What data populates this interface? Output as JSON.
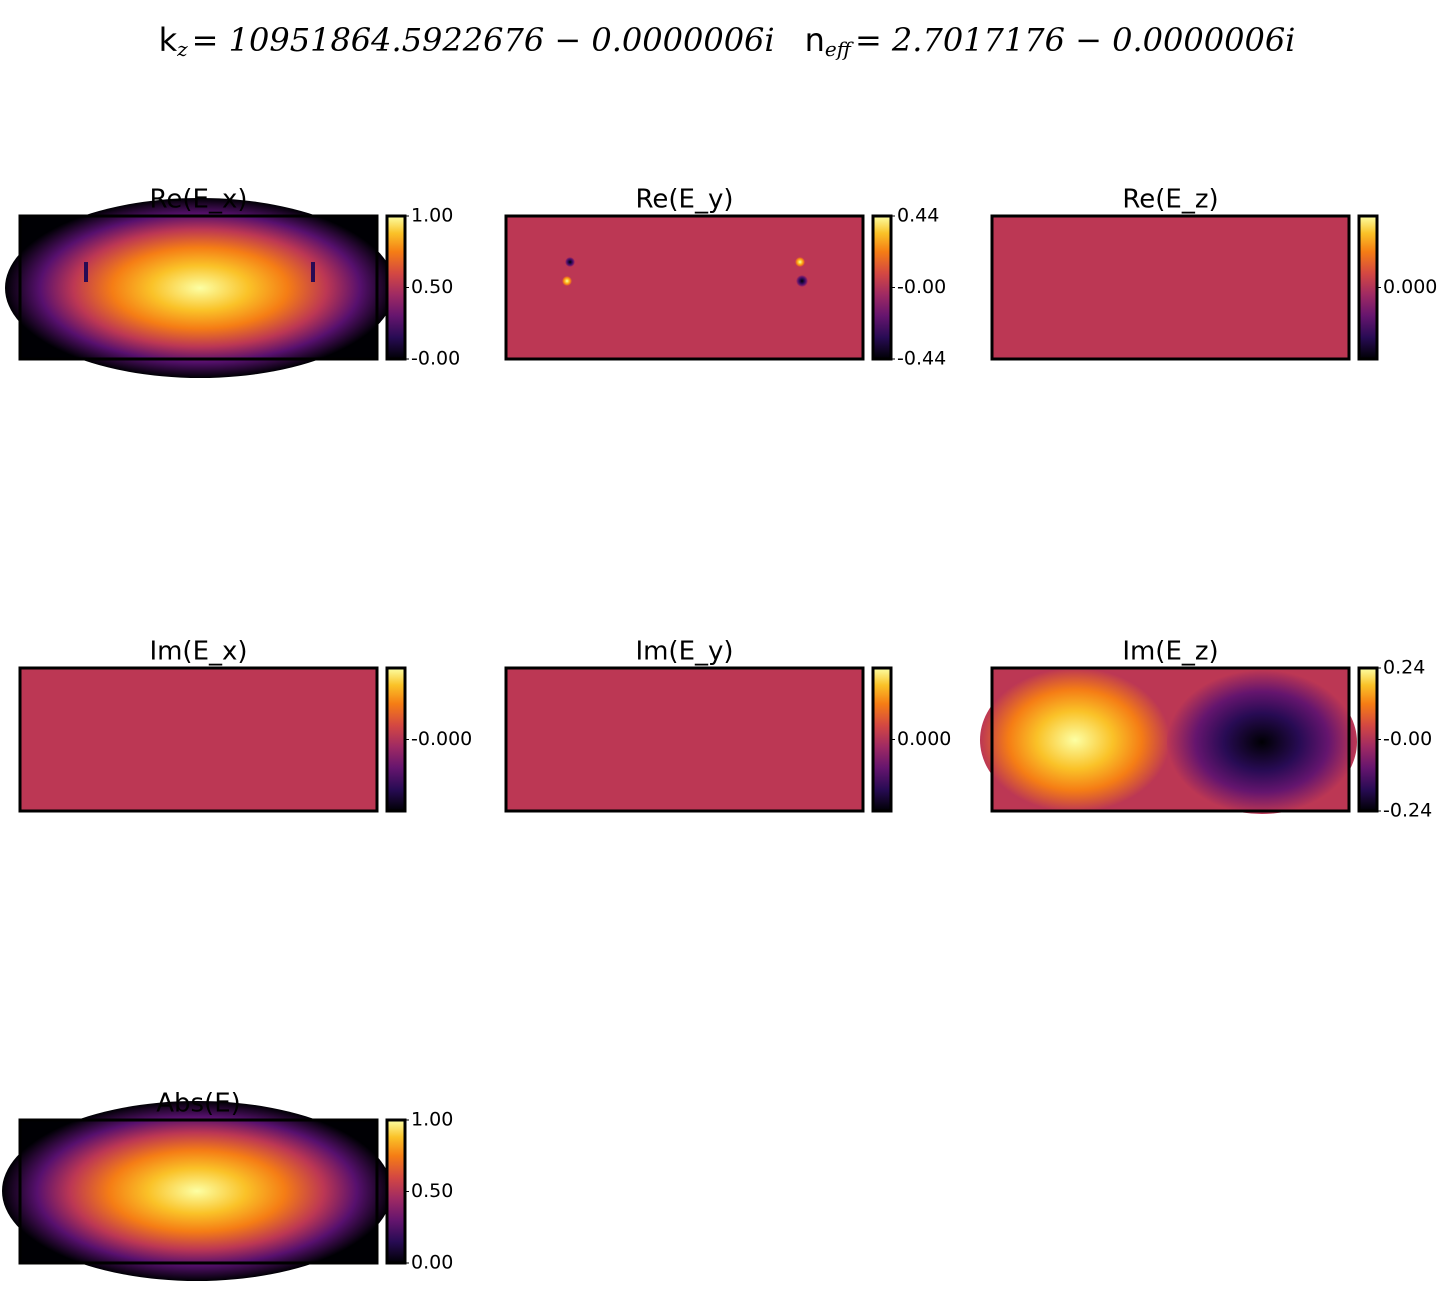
{
  "figure_title": {
    "k": "k",
    "k_sub": "z",
    "k_value": "= 10951864.5922676 − 0.0000006i",
    "n": "n",
    "n_sub": "eff",
    "n_value": "= 2.7017176 − 0.0000006i"
  },
  "chart_data": [
    {
      "type": "heatmap",
      "title": "Re(E_x)",
      "colormap": "inferno",
      "clim": [
        0,
        1
      ],
      "cticks": [
        {
          "value": 1,
          "label": "1.00"
        },
        {
          "value": 0.5,
          "label": "0.50"
        },
        {
          "value": 0,
          "label": "-0.00"
        }
      ]
    },
    {
      "type": "heatmap",
      "title": "Re(E_y)",
      "colormap": "inferno",
      "clim": [
        -0.44,
        0.44
      ],
      "cticks": [
        0.44,
        {
          "value": 0,
          "label": "-0.00"
        },
        -0.44
      ]
    },
    {
      "type": "heatmap",
      "title": "Re(E_z)",
      "colormap": "inferno",
      "clim": [
        -0.0001,
        0.0001
      ],
      "cticks": [
        {
          "value": 0,
          "label": "0.000"
        }
      ]
    },
    {
      "type": "heatmap",
      "title": "Im(E_x)",
      "colormap": "inferno",
      "clim": [
        -0.0001,
        0.0001
      ],
      "cticks": [
        {
          "value": 0,
          "label": "-0.000"
        }
      ]
    },
    {
      "type": "heatmap",
      "title": "Im(E_y)",
      "colormap": "inferno",
      "clim": [
        -0.0001,
        0.0001
      ],
      "cticks": [
        {
          "value": 0,
          "label": "0.000"
        }
      ]
    },
    {
      "type": "heatmap",
      "title": "Im(E_z)",
      "colormap": "inferno",
      "clim": [
        -0.24,
        0.24
      ],
      "cticks": [
        0.24,
        {
          "value": 0,
          "label": "-0.00"
        },
        -0.24
      ]
    },
    {
      "type": "heatmap",
      "title": "Abs(E)",
      "colormap": "inferno",
      "clim": [
        0,
        1
      ],
      "cticks": [
        {
          "value": 1,
          "label": "1.00"
        },
        {
          "value": 0.5,
          "label": "0.50"
        },
        {
          "value": 0,
          "label": "0.00"
        }
      ]
    }
  ]
}
